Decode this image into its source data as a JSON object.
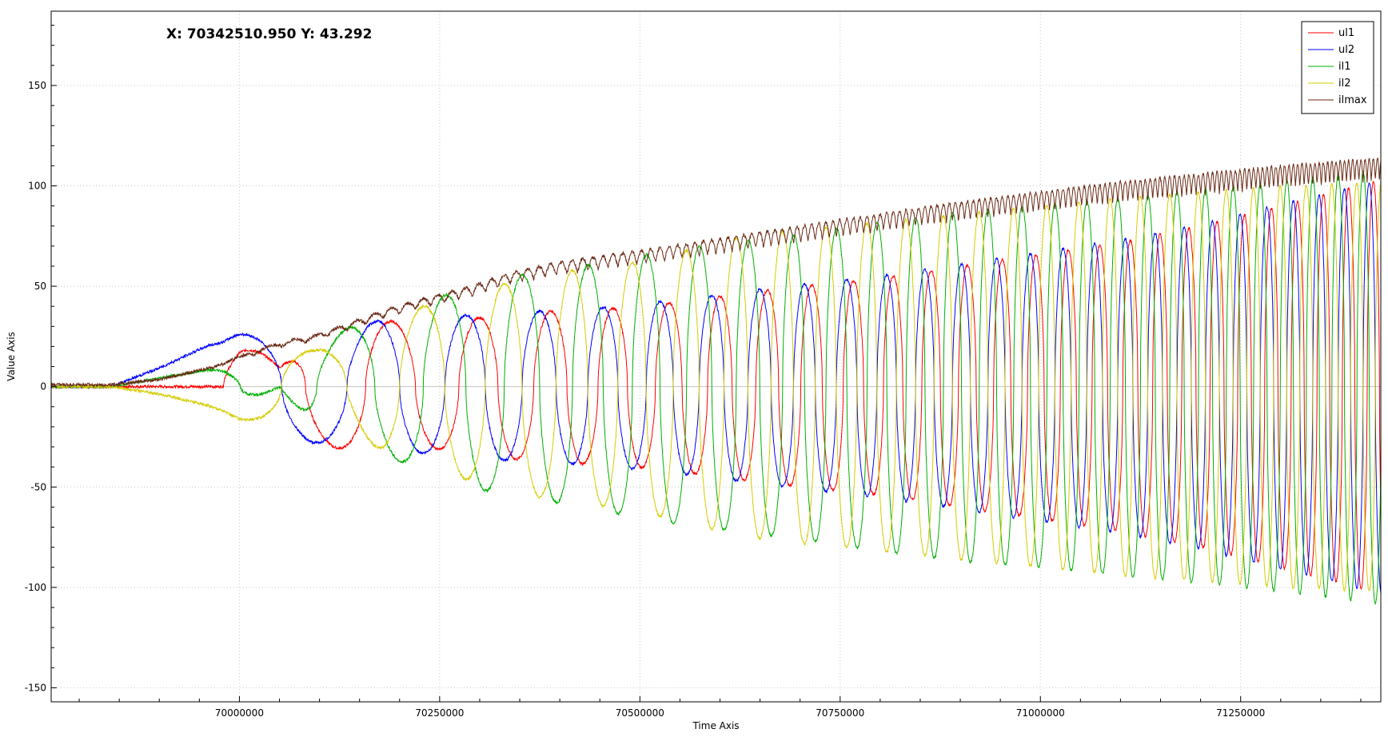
{
  "cursor_readout": "X: 70342510.950 Y: 43.292",
  "chart_data": {
    "type": "line",
    "xlabel": "Time Axis",
    "ylabel": "Value Axis",
    "xlim": [
      69765000,
      71425000
    ],
    "ylim": [
      -157,
      187
    ],
    "x_ticks": [
      70000000,
      70250000,
      70500000,
      70750000,
      71000000,
      71250000
    ],
    "x_tick_labels": [
      "70000000",
      "70250000",
      "70500000",
      "70750000",
      "71000000",
      "71250000"
    ],
    "y_ticks": [
      150,
      100,
      50,
      0,
      -50,
      -100,
      -150
    ],
    "y_tick_labels": [
      "150",
      "100",
      "50",
      "0",
      "-50",
      "-100",
      "-150"
    ],
    "grid": true,
    "legend_position": "top-right",
    "series": [
      {
        "name": "ul1",
        "color": "#ff0000",
        "phase": 0,
        "x": [
          69765000,
          69840000,
          69900000,
          69960000,
          70000000,
          70050000,
          70090000,
          70140000,
          70180000,
          70230000,
          70290000,
          70340000,
          70400000,
          70470000,
          70540000,
          70620000,
          70700000,
          70800000,
          70900000,
          71000000,
          71100000,
          71200000,
          71300000,
          71425000
        ],
        "values": [
          0,
          0,
          8,
          22,
          25,
          10,
          -28,
          -32,
          -33,
          30,
          34,
          -36,
          -38,
          39,
          42,
          46,
          50,
          54,
          60,
          66,
          72,
          80,
          90,
          103
        ]
      },
      {
        "name": "ul2",
        "color": "#0000ff",
        "phase": 1.047,
        "x": [
          69765000,
          69840000,
          69900000,
          69960000,
          70000000,
          70050000,
          70090000,
          70140000,
          70180000,
          70230000,
          70290000,
          70340000,
          70400000,
          70470000,
          70540000,
          70620000,
          70700000,
          70800000,
          70900000,
          71000000,
          71100000,
          71200000,
          71300000,
          71425000
        ],
        "values": [
          0,
          0,
          -10,
          -22,
          -26,
          -27,
          -28,
          28,
          34,
          33,
          -36,
          -37,
          38,
          40,
          43,
          47,
          51,
          55,
          61,
          67,
          73,
          81,
          91,
          103
        ]
      },
      {
        "name": "il1",
        "color": "#00b000",
        "phase": 2.6,
        "x": [
          69765000,
          69840000,
          69900000,
          69960000,
          70000000,
          70050000,
          70090000,
          70140000,
          70180000,
          70230000,
          70290000,
          70340000,
          70400000,
          70470000,
          70540000,
          70620000,
          70700000,
          70800000,
          70900000,
          71000000,
          71100000,
          71200000,
          71300000,
          71425000
        ],
        "values": [
          0,
          0,
          -6,
          -12,
          -10,
          0,
          20,
          30,
          34,
          -42,
          -50,
          55,
          58,
          -63,
          68,
          -72,
          76,
          -82,
          87,
          -90,
          94,
          -98,
          102,
          -108
        ]
      },
      {
        "name": "il2",
        "color": "#d4cc00",
        "phase": 4.2,
        "x": [
          69765000,
          69840000,
          69900000,
          69960000,
          70000000,
          70050000,
          70090000,
          70140000,
          70180000,
          70230000,
          70290000,
          70340000,
          70400000,
          70470000,
          70540000,
          70620000,
          70700000,
          70800000,
          70900000,
          71000000,
          71100000,
          71200000,
          71300000,
          71425000
        ],
        "values": [
          0,
          0,
          4,
          10,
          16,
          20,
          18,
          -20,
          -33,
          -40,
          47,
          52,
          -57,
          -60,
          66,
          74,
          78,
          -82,
          86,
          90,
          -94,
          97,
          -100,
          102
        ]
      },
      {
        "name": "ilmax",
        "color": "#6b2a16",
        "phase": 0,
        "x": [
          69765000,
          69840000,
          69900000,
          69960000,
          70000000,
          70050000,
          70090000,
          70140000,
          70180000,
          70230000,
          70290000,
          70340000,
          70400000,
          70470000,
          70540000,
          70620000,
          70700000,
          70800000,
          70900000,
          71000000,
          71100000,
          71200000,
          71300000,
          71425000
        ],
        "values": [
          1,
          1,
          4,
          10,
          15,
          22,
          25,
          32,
          38,
          44,
          50,
          57,
          62,
          66,
          70,
          75,
          80,
          86,
          92,
          97,
          102,
          106,
          110,
          114
        ]
      }
    ]
  }
}
